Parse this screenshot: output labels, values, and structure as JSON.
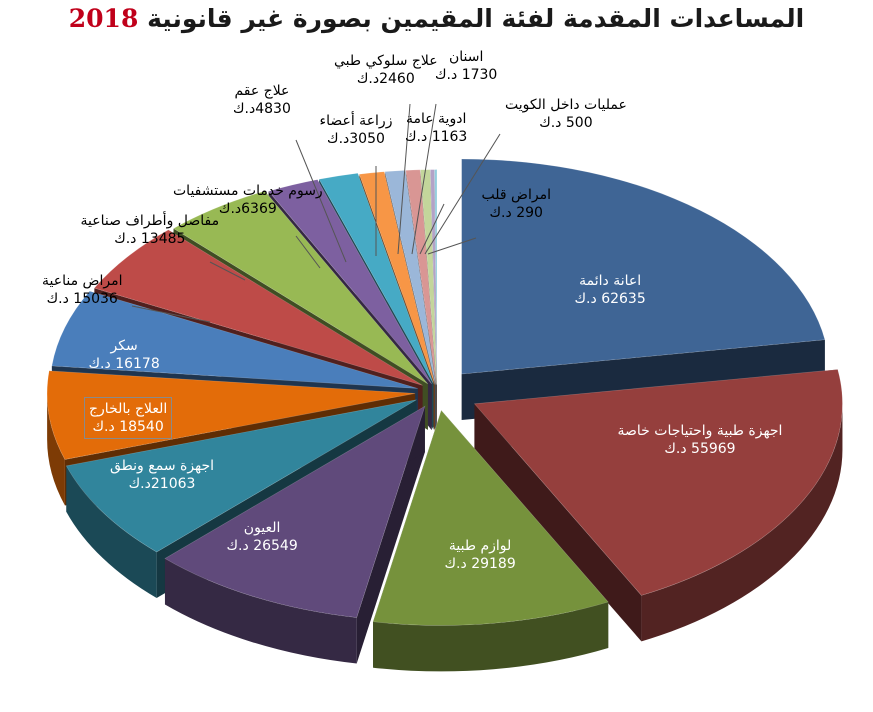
{
  "title": {
    "text": "المساعدات المقدمة لفئة المقيمين بصورة غير قانونية",
    "year": "2018"
  },
  "chart_data": {
    "type": "pie",
    "title": "المساعدات المقدمة لفئة المقيمين بصورة غير قانونية 2018",
    "unit": "د.ك",
    "slices": [
      {
        "label": "اعانة دائمة",
        "value": 62635,
        "value_text": "62635 د.ك",
        "color": "#3f6595"
      },
      {
        "label": "اجهزة طبية واحتياجات خاصة",
        "value": 55969,
        "value_text": "55969 د.ك",
        "color": "#953f3d"
      },
      {
        "label": "لوازم طبية",
        "value": 29189,
        "value_text": "29189 د.ك",
        "color": "#76923c"
      },
      {
        "label": "العيون",
        "value": 26549,
        "value_text": "26549 د.ك",
        "color": "#604a7b"
      },
      {
        "label": "اجهزة سمع ونطق",
        "value": 21063,
        "value_text": "21063د.ك",
        "color": "#31859c"
      },
      {
        "label": "العلاج بالخارج",
        "value": 18540,
        "value_text": "18540 د.ك",
        "color": "#e36c09"
      },
      {
        "label": "سكر",
        "value": 16178,
        "value_text": "16178 د.ك",
        "color": "#4a7ebb"
      },
      {
        "label": "امراض مناعية",
        "value": 15036,
        "value_text": "15036 د.ك",
        "color": "#be4b48"
      },
      {
        "label": "مفاصل وأطراف صناعية",
        "value": 13485,
        "value_text": "13485 د.ك",
        "color": "#98b954"
      },
      {
        "label": "رسوم خدمات مستشفيات",
        "value": 6369,
        "value_text": "6369د.ك",
        "color": "#7d60a0"
      },
      {
        "label": "علاج عقم",
        "value": 4830,
        "value_text": "4830د.ك",
        "color": "#46aac5"
      },
      {
        "label": "زراعة أعضاء",
        "value": 3050,
        "value_text": "3050د.ك",
        "color": "#f79646"
      },
      {
        "label": "علاج سلوكي طبي",
        "value": 2460,
        "value_text": "2460د.ك",
        "color": "#9bb7d9"
      },
      {
        "label": "اسنان",
        "value": 1730,
        "value_text": "1730 د.ك",
        "color": "#d99694"
      },
      {
        "label": "ادوية عامة",
        "value": 1163,
        "value_text": "1163 د.ك",
        "color": "#c3d69b"
      },
      {
        "label": "عمليات داخل الكويت",
        "value": 500,
        "value_text": "500 د.ك",
        "color": "#b3a2c7"
      },
      {
        "label": "امراض قلب",
        "value": 290,
        "value_text": "290 د.ك",
        "color": "#93cddd"
      }
    ]
  }
}
